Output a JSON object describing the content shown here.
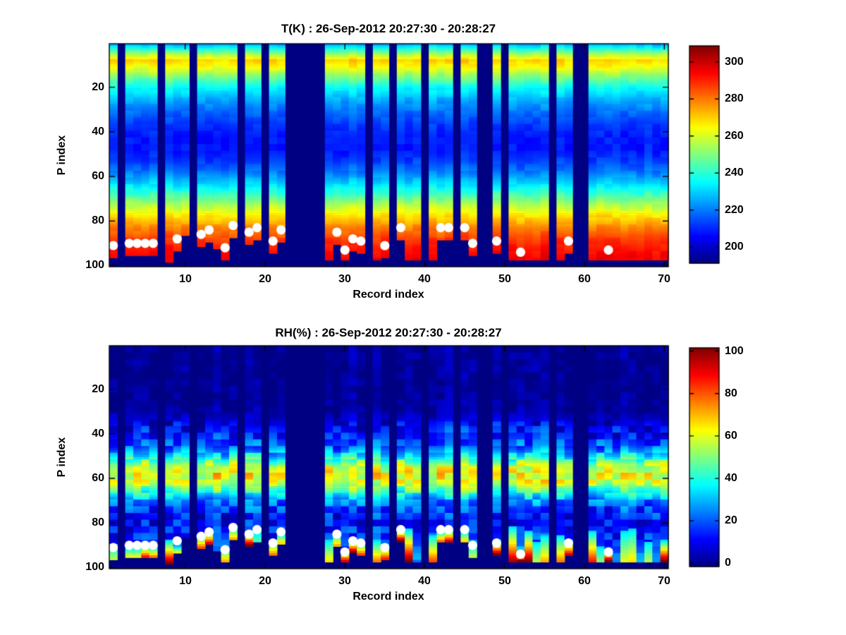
{
  "figure": {
    "background": "#ffffff",
    "nan_color": "#000083",
    "dot_color": "#ffffff"
  },
  "chart_data": [
    {
      "type": "heatmap",
      "title": "T(K) : 26-Sep-2012 20:27:30 - 20:28:27",
      "xlabel": "Record index",
      "ylabel": "P index",
      "x_range": [
        0.5,
        70.5
      ],
      "y_range": [
        0.5,
        100.5
      ],
      "y_reversed": true,
      "n_records": 70,
      "n_levels": 100,
      "xticks": [
        10,
        20,
        30,
        40,
        50,
        60,
        70
      ],
      "yticks": [
        20,
        40,
        60,
        80,
        100
      ],
      "colormap": "jet",
      "caxis": [
        193,
        307
      ],
      "colorbar_ticks": [
        200,
        220,
        240,
        260,
        280,
        300
      ],
      "legend_position": "right-colorbar",
      "grid": false,
      "profile_p": [
        1,
        3,
        5,
        8,
        11,
        15,
        20,
        25,
        30,
        36,
        42,
        48,
        53,
        58,
        63,
        68,
        73,
        78,
        83,
        88,
        93,
        97,
        100
      ],
      "profile_value": [
        228,
        240,
        254,
        269,
        264,
        251,
        237,
        228,
        221,
        214,
        210,
        210,
        214,
        221,
        231,
        243,
        256,
        268,
        278,
        286,
        291,
        294,
        295
      ],
      "missing_records": [
        2,
        7,
        11,
        17,
        20,
        23,
        24,
        25,
        26,
        27,
        33,
        36,
        40,
        44,
        47,
        48,
        50,
        56,
        59,
        60
      ],
      "surface_cut_overrides": {
        "8": 98,
        "10": 86,
        "14": 92
      },
      "surface_dots": [
        {
          "record": 1,
          "p": 91
        },
        {
          "record": 3,
          "p": 90
        },
        {
          "record": 4,
          "p": 90
        },
        {
          "record": 5,
          "p": 90
        },
        {
          "record": 6,
          "p": 90
        },
        {
          "record": 9,
          "p": 88
        },
        {
          "record": 12,
          "p": 86
        },
        {
          "record": 13,
          "p": 84
        },
        {
          "record": 15,
          "p": 92
        },
        {
          "record": 16,
          "p": 82
        },
        {
          "record": 18,
          "p": 85
        },
        {
          "record": 19,
          "p": 83
        },
        {
          "record": 21,
          "p": 89
        },
        {
          "record": 22,
          "p": 84
        },
        {
          "record": 29,
          "p": 85
        },
        {
          "record": 30,
          "p": 93
        },
        {
          "record": 31,
          "p": 88
        },
        {
          "record": 32,
          "p": 89
        },
        {
          "record": 35,
          "p": 91
        },
        {
          "record": 37,
          "p": 83
        },
        {
          "record": 42,
          "p": 83
        },
        {
          "record": 43,
          "p": 83
        },
        {
          "record": 45,
          "p": 83
        },
        {
          "record": 46,
          "p": 90
        },
        {
          "record": 49,
          "p": 89
        },
        {
          "record": 52,
          "p": 94
        },
        {
          "record": 58,
          "p": 89
        },
        {
          "record": 63,
          "p": 93
        }
      ]
    },
    {
      "type": "heatmap",
      "title": "RH(%) : 26-Sep-2012 20:27:30 - 20:28:27",
      "xlabel": "Record index",
      "ylabel": "P index",
      "x_range": [
        0.5,
        70.5
      ],
      "y_range": [
        0.5,
        100.5
      ],
      "y_reversed": true,
      "n_records": 70,
      "n_levels": 100,
      "xticks": [
        10,
        20,
        30,
        40,
        50,
        60,
        70
      ],
      "yticks": [
        20,
        40,
        60,
        80,
        100
      ],
      "colormap": "jet",
      "caxis": [
        0,
        100
      ],
      "colorbar_ticks": [
        0,
        20,
        40,
        60,
        80,
        100
      ],
      "legend_position": "right-colorbar",
      "grid": false,
      "profile_p": [
        1,
        26,
        30,
        34,
        38,
        42,
        46,
        50,
        54,
        58,
        62,
        66,
        70,
        74,
        78,
        82,
        86,
        90,
        94,
        100
      ],
      "profile_value": [
        2,
        2,
        4,
        8,
        13,
        17,
        22,
        35,
        55,
        63,
        58,
        42,
        26,
        19,
        15,
        15,
        17,
        20,
        24,
        28
      ],
      "missing_records": [
        2,
        7,
        11,
        17,
        20,
        23,
        24,
        25,
        26,
        27,
        33,
        36,
        40,
        44,
        47,
        48,
        50,
        56,
        59,
        60
      ],
      "surface_cut_overrides": {
        "8": 98,
        "10": 86,
        "14": 92
      },
      "wet_surface": [
        {
          "record": 1,
          "start_p": 92,
          "peak": 55
        },
        {
          "record": 3,
          "start_p": 93,
          "peak": 60
        },
        {
          "record": 4,
          "start_p": 93,
          "peak": 60
        },
        {
          "record": 5,
          "start_p": 92,
          "peak": 85
        },
        {
          "record": 6,
          "start_p": 93,
          "peak": 75
        },
        {
          "record": 8,
          "start_p": 90,
          "peak": 100
        },
        {
          "record": 9,
          "start_p": 93,
          "peak": 60
        },
        {
          "record": 12,
          "start_p": 88,
          "peak": 80
        },
        {
          "record": 13,
          "start_p": 86,
          "peak": 90
        },
        {
          "record": 15,
          "start_p": 93,
          "peak": 70
        },
        {
          "record": 16,
          "start_p": 84,
          "peak": 70
        },
        {
          "record": 18,
          "start_p": 86,
          "peak": 100
        },
        {
          "record": 19,
          "start_p": 86,
          "peak": 45
        },
        {
          "record": 21,
          "start_p": 90,
          "peak": 75
        },
        {
          "record": 22,
          "start_p": 87,
          "peak": 65
        },
        {
          "record": 28,
          "start_p": 90,
          "peak": 65
        },
        {
          "record": 29,
          "start_p": 87,
          "peak": 70
        },
        {
          "record": 30,
          "start_p": 94,
          "peak": 90
        },
        {
          "record": 31,
          "start_p": 90,
          "peak": 100
        },
        {
          "record": 32,
          "start_p": 91,
          "peak": 80
        },
        {
          "record": 34,
          "start_p": 90,
          "peak": 75
        },
        {
          "record": 35,
          "start_p": 92,
          "peak": 85
        },
        {
          "record": 37,
          "start_p": 85,
          "peak": 100
        },
        {
          "record": 38,
          "start_p": 85,
          "peak": 100
        },
        {
          "record": 41,
          "start_p": 88,
          "peak": 80
        },
        {
          "record": 42,
          "start_p": 86,
          "peak": 75
        },
        {
          "record": 43,
          "start_p": 85,
          "peak": 90
        },
        {
          "record": 45,
          "start_p": 86,
          "peak": 65
        },
        {
          "record": 46,
          "start_p": 91,
          "peak": 55
        },
        {
          "record": 49,
          "start_p": 90,
          "peak": 100
        },
        {
          "record": 51,
          "start_p": 84,
          "peak": 95
        },
        {
          "record": 52,
          "start_p": 95,
          "peak": 100
        },
        {
          "record": 53,
          "start_p": 86,
          "peak": 100
        },
        {
          "record": 54,
          "start_p": 91,
          "peak": 55
        },
        {
          "record": 55,
          "start_p": 88,
          "peak": 70
        },
        {
          "record": 57,
          "start_p": 88,
          "peak": 75
        },
        {
          "record": 58,
          "start_p": 90,
          "peak": 90
        },
        {
          "record": 61,
          "start_p": 86,
          "peak": 85
        },
        {
          "record": 62,
          "start_p": 93,
          "peak": 50
        },
        {
          "record": 63,
          "start_p": 94,
          "peak": 100
        },
        {
          "record": 65,
          "start_p": 86,
          "peak": 60
        },
        {
          "record": 66,
          "start_p": 85,
          "peak": 65
        },
        {
          "record": 68,
          "start_p": 91,
          "peak": 55
        },
        {
          "record": 70,
          "start_p": 90,
          "peak": 100
        }
      ],
      "surface_dots": [
        {
          "record": 1,
          "p": 91
        },
        {
          "record": 3,
          "p": 90
        },
        {
          "record": 4,
          "p": 90
        },
        {
          "record": 5,
          "p": 90
        },
        {
          "record": 6,
          "p": 90
        },
        {
          "record": 9,
          "p": 88
        },
        {
          "record": 12,
          "p": 86
        },
        {
          "record": 13,
          "p": 84
        },
        {
          "record": 15,
          "p": 92
        },
        {
          "record": 16,
          "p": 82
        },
        {
          "record": 18,
          "p": 85
        },
        {
          "record": 19,
          "p": 83
        },
        {
          "record": 21,
          "p": 89
        },
        {
          "record": 22,
          "p": 84
        },
        {
          "record": 29,
          "p": 85
        },
        {
          "record": 30,
          "p": 93
        },
        {
          "record": 31,
          "p": 88
        },
        {
          "record": 32,
          "p": 89
        },
        {
          "record": 35,
          "p": 91
        },
        {
          "record": 37,
          "p": 83
        },
        {
          "record": 42,
          "p": 83
        },
        {
          "record": 43,
          "p": 83
        },
        {
          "record": 45,
          "p": 83
        },
        {
          "record": 46,
          "p": 90
        },
        {
          "record": 49,
          "p": 89
        },
        {
          "record": 52,
          "p": 94
        },
        {
          "record": 58,
          "p": 89
        },
        {
          "record": 63,
          "p": 93
        }
      ]
    }
  ]
}
